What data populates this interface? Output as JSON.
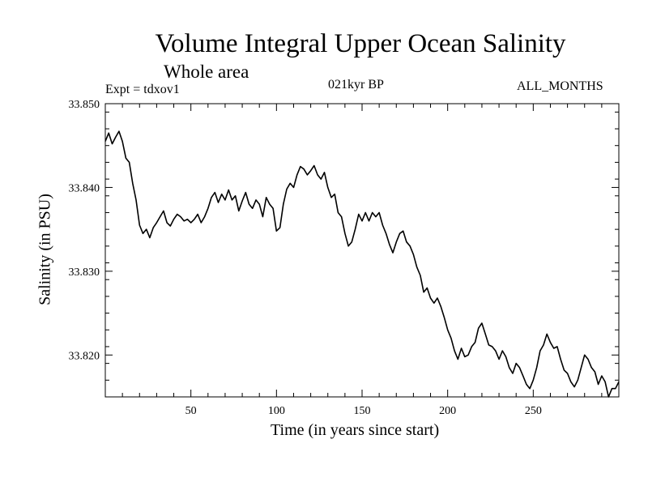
{
  "chart_data": {
    "type": "line",
    "title": "Volume Integral Upper Ocean Salinity",
    "subtitle": "Whole area",
    "annotations": {
      "experiment": "Expt = tdxov1",
      "period": "021kyr BP",
      "months": "ALL_MONTHS"
    },
    "xlabel": "Time (in years since start)",
    "ylabel": "Salinity (in PSU)",
    "xlim": [
      0,
      300
    ],
    "ylim": [
      33.815,
      33.85
    ],
    "x_ticks": [
      50,
      100,
      150,
      200,
      250
    ],
    "x_tick_labels": [
      "50",
      "100",
      "150",
      "200",
      "250"
    ],
    "y_ticks": [
      33.82,
      33.83,
      33.84,
      33.85
    ],
    "y_tick_labels": [
      "33.820",
      "33.830",
      "33.840",
      "33.850"
    ],
    "grid": false,
    "series": [
      {
        "name": "Salinity",
        "color": "#000000",
        "points": [
          [
            0,
            33.8455
          ],
          [
            2,
            33.8465
          ],
          [
            4,
            33.8452
          ],
          [
            6,
            33.846
          ],
          [
            8,
            33.8467
          ],
          [
            10,
            33.8455
          ],
          [
            12,
            33.8435
          ],
          [
            14,
            33.843
          ],
          [
            16,
            33.8405
          ],
          [
            18,
            33.8385
          ],
          [
            20,
            33.8355
          ],
          [
            22,
            33.8345
          ],
          [
            24,
            33.835
          ],
          [
            26,
            33.834
          ],
          [
            28,
            33.8352
          ],
          [
            30,
            33.8358
          ],
          [
            32,
            33.8365
          ],
          [
            34,
            33.8372
          ],
          [
            36,
            33.8358
          ],
          [
            38,
            33.8354
          ],
          [
            40,
            33.8362
          ],
          [
            42,
            33.8368
          ],
          [
            44,
            33.8365
          ],
          [
            46,
            33.836
          ],
          [
            48,
            33.8362
          ],
          [
            50,
            33.8358
          ],
          [
            52,
            33.8362
          ],
          [
            54,
            33.8368
          ],
          [
            56,
            33.8358
          ],
          [
            58,
            33.8365
          ],
          [
            60,
            33.8375
          ],
          [
            62,
            33.8388
          ],
          [
            64,
            33.8394
          ],
          [
            66,
            33.8382
          ],
          [
            68,
            33.8392
          ],
          [
            70,
            33.8385
          ],
          [
            72,
            33.8397
          ],
          [
            74,
            33.8385
          ],
          [
            76,
            33.839
          ],
          [
            78,
            33.8372
          ],
          [
            80,
            33.8384
          ],
          [
            82,
            33.8394
          ],
          [
            84,
            33.838
          ],
          [
            86,
            33.8375
          ],
          [
            88,
            33.8385
          ],
          [
            90,
            33.838
          ],
          [
            92,
            33.8365
          ],
          [
            94,
            33.8388
          ],
          [
            96,
            33.838
          ],
          [
            98,
            33.8375
          ],
          [
            100,
            33.8348
          ],
          [
            102,
            33.8352
          ],
          [
            104,
            33.838
          ],
          [
            106,
            33.8398
          ],
          [
            108,
            33.8405
          ],
          [
            110,
            33.84
          ],
          [
            112,
            33.8415
          ],
          [
            114,
            33.8425
          ],
          [
            116,
            33.8422
          ],
          [
            118,
            33.8415
          ],
          [
            120,
            33.842
          ],
          [
            122,
            33.8426
          ],
          [
            124,
            33.8415
          ],
          [
            126,
            33.841
          ],
          [
            128,
            33.8418
          ],
          [
            130,
            33.84
          ],
          [
            132,
            33.8388
          ],
          [
            134,
            33.8392
          ],
          [
            136,
            33.837
          ],
          [
            138,
            33.8365
          ],
          [
            140,
            33.8345
          ],
          [
            142,
            33.833
          ],
          [
            144,
            33.8335
          ],
          [
            146,
            33.835
          ],
          [
            148,
            33.8368
          ],
          [
            150,
            33.836
          ],
          [
            152,
            33.837
          ],
          [
            154,
            33.836
          ],
          [
            156,
            33.837
          ],
          [
            158,
            33.8365
          ],
          [
            160,
            33.837
          ],
          [
            162,
            33.8355
          ],
          [
            164,
            33.8345
          ],
          [
            166,
            33.8332
          ],
          [
            168,
            33.8322
          ],
          [
            170,
            33.8335
          ],
          [
            172,
            33.8345
          ],
          [
            174,
            33.8348
          ],
          [
            176,
            33.8335
          ],
          [
            178,
            33.833
          ],
          [
            180,
            33.832
          ],
          [
            182,
            33.8305
          ],
          [
            184,
            33.8295
          ],
          [
            186,
            33.8275
          ],
          [
            188,
            33.828
          ],
          [
            190,
            33.8268
          ],
          [
            192,
            33.8262
          ],
          [
            194,
            33.8268
          ],
          [
            196,
            33.8258
          ],
          [
            198,
            33.8245
          ],
          [
            200,
            33.823
          ],
          [
            202,
            33.822
          ],
          [
            204,
            33.8205
          ],
          [
            206,
            33.8195
          ],
          [
            208,
            33.8208
          ],
          [
            210,
            33.8198
          ],
          [
            212,
            33.82
          ],
          [
            214,
            33.821
          ],
          [
            216,
            33.8215
          ],
          [
            218,
            33.8232
          ],
          [
            220,
            33.8238
          ],
          [
            222,
            33.8225
          ],
          [
            224,
            33.8212
          ],
          [
            226,
            33.821
          ],
          [
            228,
            33.8205
          ],
          [
            230,
            33.8195
          ],
          [
            232,
            33.8205
          ],
          [
            234,
            33.8198
          ],
          [
            236,
            33.8185
          ],
          [
            238,
            33.8178
          ],
          [
            240,
            33.819
          ],
          [
            242,
            33.8185
          ],
          [
            244,
            33.8175
          ],
          [
            246,
            33.8165
          ],
          [
            248,
            33.816
          ],
          [
            250,
            33.817
          ],
          [
            252,
            33.8185
          ],
          [
            254,
            33.8205
          ],
          [
            256,
            33.8212
          ],
          [
            258,
            33.8225
          ],
          [
            260,
            33.8215
          ],
          [
            262,
            33.8208
          ],
          [
            264,
            33.821
          ],
          [
            266,
            33.8195
          ],
          [
            268,
            33.8182
          ],
          [
            270,
            33.8178
          ],
          [
            272,
            33.8168
          ],
          [
            274,
            33.8162
          ],
          [
            276,
            33.817
          ],
          [
            278,
            33.8185
          ],
          [
            280,
            33.82
          ],
          [
            282,
            33.8195
          ],
          [
            284,
            33.8185
          ],
          [
            286,
            33.818
          ],
          [
            288,
            33.8165
          ],
          [
            290,
            33.8175
          ],
          [
            292,
            33.8168
          ],
          [
            294,
            33.815
          ],
          [
            296,
            33.816
          ],
          [
            298,
            33.816
          ],
          [
            300,
            33.8168
          ]
        ]
      }
    ]
  }
}
